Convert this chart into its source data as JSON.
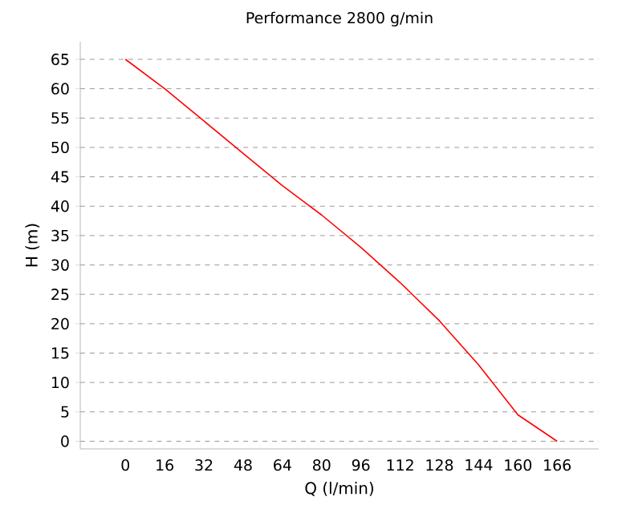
{
  "chart_data": {
    "type": "line",
    "title": "Performance  2800 g/min",
    "xlabel": "Q (l/min)",
    "ylabel": "H (m)",
    "categories": [
      "0",
      "16",
      "32",
      "48",
      "64",
      "80",
      "96",
      "112",
      "128",
      "144",
      "160",
      "166"
    ],
    "series": [
      {
        "color": "#ff0000",
        "values": [
          65,
          60,
          54.5,
          49,
          43.5,
          38.5,
          33,
          27,
          20.5,
          13,
          4.5,
          0
        ]
      }
    ],
    "ylim": [
      -1.3,
      68
    ],
    "yticks": [
      0,
      5,
      10,
      15,
      20,
      25,
      30,
      35,
      40,
      45,
      50,
      55,
      60,
      65
    ],
    "grid": "y",
    "marker": "none",
    "line_style": "solid"
  }
}
